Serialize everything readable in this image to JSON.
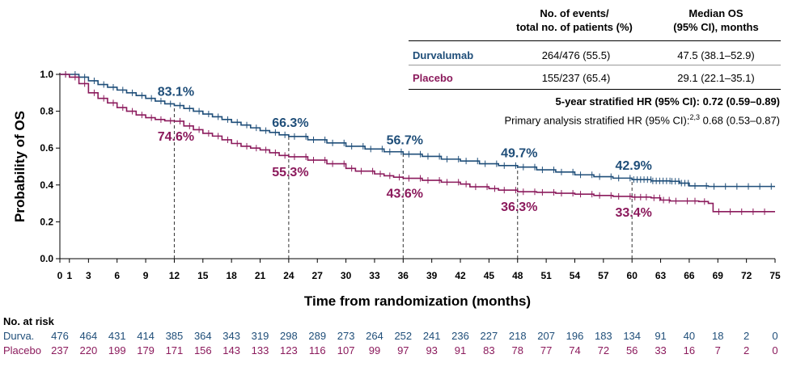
{
  "colors": {
    "durvalumab": "#1f4e79",
    "placebo": "#8b1a5c"
  },
  "table": {
    "col1_header_line1": "No. of events/",
    "col1_header_line2": "total no. of patients (%)",
    "col2_header_line1": "Median OS",
    "col2_header_line2": "(95% CI), months",
    "rows": [
      {
        "label": "Durvalumab",
        "events": "264/476 (55.5)",
        "median": "47.5 (38.1–52.9)"
      },
      {
        "label": "Placebo",
        "events": "155/237 (65.4)",
        "median": "29.1 (22.1–35.1)"
      }
    ],
    "hr_5yr_label": "5-year stratified HR (95% CI):",
    "hr_5yr_value": "0.72 (0.59–0.89)",
    "hr_primary_label": "Primary analysis stratified HR (95% CI):",
    "hr_primary_sup": "2,3",
    "hr_primary_value": "0.68 (0.53–0.87)"
  },
  "chart_data": {
    "type": "line",
    "subtype": "kaplan-meier",
    "xlabel": "Time from randomization (months)",
    "ylabel": "Probability of OS",
    "xlim": [
      0,
      75
    ],
    "ylim": [
      0,
      1
    ],
    "x_ticks": [
      0,
      1,
      3,
      6,
      9,
      12,
      15,
      18,
      21,
      24,
      27,
      30,
      33,
      36,
      39,
      42,
      45,
      48,
      51,
      54,
      57,
      60,
      63,
      66,
      69,
      72,
      75
    ],
    "y_ticks": [
      "0.0",
      "0.2",
      "0.4",
      "0.6",
      "0.8",
      "1.0"
    ],
    "series": [
      {
        "name": "Durvalumab",
        "points": [
          [
            0,
            1.0
          ],
          [
            1,
            1.0
          ],
          [
            2,
            0.985
          ],
          [
            3,
            0.965
          ],
          [
            4,
            0.945
          ],
          [
            5,
            0.93
          ],
          [
            6,
            0.915
          ],
          [
            7,
            0.9
          ],
          [
            8,
            0.885
          ],
          [
            9,
            0.87
          ],
          [
            10,
            0.855
          ],
          [
            11,
            0.84
          ],
          [
            12,
            0.831
          ],
          [
            13,
            0.815
          ],
          [
            14,
            0.8
          ],
          [
            15,
            0.785
          ],
          [
            16,
            0.77
          ],
          [
            17,
            0.755
          ],
          [
            18,
            0.74
          ],
          [
            19,
            0.725
          ],
          [
            20,
            0.71
          ],
          [
            21,
            0.695
          ],
          [
            22,
            0.685
          ],
          [
            23,
            0.672
          ],
          [
            24,
            0.663
          ],
          [
            26,
            0.645
          ],
          [
            28,
            0.628
          ],
          [
            30,
            0.61
          ],
          [
            32,
            0.595
          ],
          [
            34,
            0.58
          ],
          [
            36,
            0.567
          ],
          [
            38,
            0.555
          ],
          [
            40,
            0.54
          ],
          [
            42,
            0.53
          ],
          [
            44,
            0.515
          ],
          [
            46,
            0.505
          ],
          [
            48,
            0.497
          ],
          [
            50,
            0.482
          ],
          [
            52,
            0.47
          ],
          [
            54,
            0.455
          ],
          [
            56,
            0.445
          ],
          [
            58,
            0.437
          ],
          [
            60,
            0.429
          ],
          [
            62,
            0.422
          ],
          [
            64,
            0.42
          ],
          [
            65,
            0.41
          ],
          [
            66,
            0.395
          ],
          [
            68,
            0.392
          ],
          [
            75,
            0.392
          ]
        ]
      },
      {
        "name": "Placebo",
        "points": [
          [
            0,
            1.0
          ],
          [
            1,
            0.985
          ],
          [
            2,
            0.95
          ],
          [
            3,
            0.9
          ],
          [
            4,
            0.87
          ],
          [
            5,
            0.845
          ],
          [
            6,
            0.82
          ],
          [
            7,
            0.8
          ],
          [
            8,
            0.78
          ],
          [
            9,
            0.765
          ],
          [
            10,
            0.755
          ],
          [
            11,
            0.748
          ],
          [
            12,
            0.746
          ],
          [
            13,
            0.72
          ],
          [
            14,
            0.7
          ],
          [
            15,
            0.68
          ],
          [
            16,
            0.665
          ],
          [
            17,
            0.645
          ],
          [
            18,
            0.625
          ],
          [
            19,
            0.61
          ],
          [
            20,
            0.6
          ],
          [
            21,
            0.59
          ],
          [
            22,
            0.575
          ],
          [
            23,
            0.56
          ],
          [
            24,
            0.553
          ],
          [
            26,
            0.535
          ],
          [
            28,
            0.515
          ],
          [
            30,
            0.49
          ],
          [
            31,
            0.475
          ],
          [
            33,
            0.46
          ],
          [
            34,
            0.45
          ],
          [
            35,
            0.442
          ],
          [
            36,
            0.436
          ],
          [
            38,
            0.425
          ],
          [
            40,
            0.415
          ],
          [
            42,
            0.405
          ],
          [
            43,
            0.39
          ],
          [
            45,
            0.38
          ],
          [
            46,
            0.372
          ],
          [
            48,
            0.363
          ],
          [
            50,
            0.36
          ],
          [
            52,
            0.355
          ],
          [
            54,
            0.35
          ],
          [
            56,
            0.343
          ],
          [
            58,
            0.338
          ],
          [
            60,
            0.334
          ],
          [
            62,
            0.33
          ],
          [
            63,
            0.318
          ],
          [
            64,
            0.313
          ],
          [
            66,
            0.313
          ],
          [
            67,
            0.31
          ],
          [
            68,
            0.3
          ],
          [
            68.5,
            0.255
          ],
          [
            75,
            0.255
          ]
        ]
      }
    ],
    "annotations": [
      {
        "series": "Durvalumab",
        "x": 12,
        "y": 0.831,
        "text": "83.1%"
      },
      {
        "series": "Durvalumab",
        "x": 24,
        "y": 0.663,
        "text": "66.3%"
      },
      {
        "series": "Durvalumab",
        "x": 36,
        "y": 0.567,
        "text": "56.7%"
      },
      {
        "series": "Durvalumab",
        "x": 48,
        "y": 0.497,
        "text": "49.7%"
      },
      {
        "series": "Durvalumab",
        "x": 60,
        "y": 0.429,
        "text": "42.9%"
      },
      {
        "series": "Placebo",
        "x": 12,
        "y": 0.746,
        "text": "74.6%"
      },
      {
        "series": "Placebo",
        "x": 24,
        "y": 0.553,
        "text": "55.3%"
      },
      {
        "series": "Placebo",
        "x": 36,
        "y": 0.436,
        "text": "43.6%"
      },
      {
        "series": "Placebo",
        "x": 48,
        "y": 0.363,
        "text": "36.3%"
      },
      {
        "series": "Placebo",
        "x": 60,
        "y": 0.334,
        "text": "33.4%"
      }
    ],
    "landmarks": [
      12,
      24,
      36,
      48,
      60
    ],
    "at_risk": {
      "title": "No. at risk",
      "times": [
        0,
        3,
        6,
        9,
        12,
        15,
        18,
        21,
        24,
        27,
        30,
        33,
        36,
        39,
        42,
        45,
        48,
        51,
        54,
        57,
        60,
        63,
        66,
        69,
        72,
        75
      ],
      "rows": [
        {
          "label": "Durva.",
          "values": [
            476,
            464,
            431,
            414,
            385,
            364,
            343,
            319,
            298,
            289,
            273,
            264,
            252,
            241,
            236,
            227,
            218,
            207,
            196,
            183,
            134,
            91,
            40,
            18,
            2,
            0
          ]
        },
        {
          "label": "Placebo",
          "values": [
            237,
            220,
            199,
            179,
            171,
            156,
            143,
            133,
            123,
            116,
            107,
            99,
            97,
            93,
            91,
            83,
            78,
            77,
            74,
            72,
            56,
            33,
            16,
            7,
            2,
            0
          ]
        }
      ]
    }
  }
}
